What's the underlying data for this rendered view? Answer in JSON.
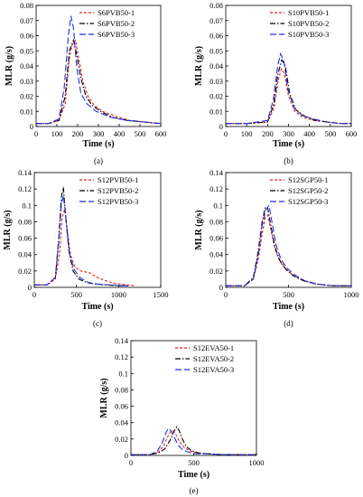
{
  "figure": {
    "panel_labels": [
      "(a)",
      "(b)",
      "(c)",
      "(d)",
      "(e)"
    ]
  },
  "chart_data": [
    {
      "type": "line",
      "ylabel": "MLR (g/s)",
      "xlabel": "Time (s)",
      "xlim": [
        0,
        600
      ],
      "ylim": [
        0,
        0.08
      ],
      "xticks": [
        0,
        100,
        200,
        300,
        400,
        500,
        600
      ],
      "yticks": [
        0,
        0.01,
        0.02,
        0.03,
        0.04,
        0.05,
        0.06,
        0.07,
        0.08
      ],
      "legend": "top-right",
      "grid": false,
      "series": [
        {
          "name": "S6PVB50-1",
          "color": "#e8231f",
          "dash": "3,2",
          "x": [
            0,
            60,
            110,
            140,
            160,
            175,
            190,
            205,
            225,
            250,
            280,
            320,
            380,
            450,
            520,
            580,
            600
          ],
          "y": [
            0.002,
            0.002,
            0.004,
            0.015,
            0.045,
            0.055,
            0.057,
            0.045,
            0.03,
            0.02,
            0.014,
            0.01,
            0.007,
            0.004,
            0.003,
            0.002,
            0.002
          ]
        },
        {
          "name": "S6PVB50-2",
          "color": "#000000",
          "dash": "6,2,1.5,2",
          "x": [
            0,
            60,
            110,
            140,
            160,
            180,
            195,
            215,
            240,
            270,
            310,
            370,
            440,
            520,
            600
          ],
          "y": [
            0.002,
            0.002,
            0.004,
            0.02,
            0.05,
            0.057,
            0.048,
            0.032,
            0.02,
            0.014,
            0.01,
            0.006,
            0.004,
            0.003,
            0.002
          ]
        },
        {
          "name": "S6PVB50-3",
          "color": "#1f2fe0",
          "dash": "7,3",
          "x": [
            0,
            60,
            110,
            135,
            155,
            168,
            180,
            195,
            215,
            245,
            290,
            360,
            440,
            520,
            600
          ],
          "y": [
            0.002,
            0.002,
            0.005,
            0.025,
            0.06,
            0.073,
            0.065,
            0.04,
            0.022,
            0.015,
            0.01,
            0.006,
            0.004,
            0.003,
            0.002
          ]
        }
      ]
    },
    {
      "type": "line",
      "ylabel": "MLR (g/s)",
      "xlabel": "Time (s)",
      "xlim": [
        0,
        600
      ],
      "ylim": [
        0,
        0.08
      ],
      "xticks": [
        0,
        100,
        200,
        300,
        400,
        500,
        600
      ],
      "yticks": [
        0,
        0.01,
        0.02,
        0.03,
        0.04,
        0.05,
        0.06,
        0.07,
        0.08
      ],
      "legend": "top-right",
      "grid": false,
      "series": [
        {
          "name": "S10PVB50-1",
          "color": "#e8231f",
          "dash": "3,2",
          "x": [
            0,
            100,
            200,
            230,
            250,
            265,
            280,
            300,
            330,
            370,
            420,
            480,
            540,
            600
          ],
          "y": [
            0.002,
            0.002,
            0.003,
            0.012,
            0.03,
            0.038,
            0.035,
            0.02,
            0.01,
            0.006,
            0.004,
            0.003,
            0.002,
            0.002
          ]
        },
        {
          "name": "S10PVB50-2",
          "color": "#000000",
          "dash": "6,2,1.5,2",
          "x": [
            0,
            100,
            200,
            230,
            250,
            268,
            285,
            305,
            335,
            375,
            430,
            490,
            550,
            600
          ],
          "y": [
            0.002,
            0.002,
            0.003,
            0.015,
            0.035,
            0.044,
            0.04,
            0.022,
            0.011,
            0.007,
            0.004,
            0.003,
            0.002,
            0.002
          ]
        },
        {
          "name": "S10PVB50-3",
          "color": "#1f2fe0",
          "dash": "7,3",
          "x": [
            0,
            100,
            200,
            228,
            248,
            262,
            278,
            298,
            328,
            368,
            420,
            480,
            545,
            600
          ],
          "y": [
            0.002,
            0.002,
            0.004,
            0.018,
            0.04,
            0.048,
            0.043,
            0.024,
            0.012,
            0.007,
            0.005,
            0.003,
            0.002,
            0.002
          ]
        }
      ]
    },
    {
      "type": "line",
      "ylabel": "MLR (g/s)",
      "xlabel": "Time (s)",
      "xlim": [
        0,
        1500
      ],
      "ylim": [
        0,
        0.14
      ],
      "xticks": [
        0,
        500,
        1000,
        1500
      ],
      "yticks": [
        0,
        0.02,
        0.04,
        0.06,
        0.08,
        0.1,
        0.12,
        0.14
      ],
      "legend": "top-right",
      "grid": false,
      "series": [
        {
          "name": "S12PVB50-1",
          "color": "#e8231f",
          "dash": "3,2",
          "x": [
            0,
            150,
            250,
            300,
            330,
            360,
            390,
            430,
            480,
            550,
            650,
            750,
            850,
            950,
            1100,
            1200
          ],
          "y": [
            0.003,
            0.003,
            0.01,
            0.04,
            0.085,
            0.095,
            0.07,
            0.04,
            0.025,
            0.02,
            0.018,
            0.012,
            0.008,
            0.005,
            0.003,
            0.002
          ]
        },
        {
          "name": "S12PVB50-2",
          "color": "#000000",
          "dash": "6,2,1.5,2",
          "x": [
            0,
            150,
            250,
            290,
            320,
            345,
            370,
            410,
            460,
            530,
            620,
            720,
            850,
            1000,
            1100
          ],
          "y": [
            0.003,
            0.003,
            0.012,
            0.06,
            0.11,
            0.122,
            0.09,
            0.045,
            0.02,
            0.01,
            0.006,
            0.004,
            0.003,
            0.002,
            0.002
          ]
        },
        {
          "name": "S12PVB50-3",
          "color": "#1f2fe0",
          "dash": "7,3",
          "x": [
            0,
            150,
            250,
            290,
            320,
            345,
            375,
            415,
            470,
            540,
            640,
            750,
            900,
            1050,
            1150
          ],
          "y": [
            0.003,
            0.003,
            0.012,
            0.055,
            0.1,
            0.112,
            0.085,
            0.042,
            0.022,
            0.012,
            0.006,
            0.004,
            0.003,
            0.002,
            0.002
          ]
        }
      ]
    },
    {
      "type": "line",
      "ylabel": "MLR (g/s)",
      "xlabel": "Time (s)",
      "xlim": [
        0,
        1000
      ],
      "ylim": [
        0,
        0.14
      ],
      "xticks": [
        0,
        500,
        1000
      ],
      "yticks": [
        0,
        0.02,
        0.04,
        0.06,
        0.08,
        0.1,
        0.12,
        0.14
      ],
      "legend": "top-right",
      "grid": false,
      "series": [
        {
          "name": "S12SGP50-1",
          "color": "#e8231f",
          "dash": "3,2",
          "x": [
            0,
            150,
            220,
            260,
            290,
            315,
            335,
            360,
            390,
            430,
            480,
            540,
            620,
            720,
            850,
            1000
          ],
          "y": [
            0.002,
            0.002,
            0.01,
            0.035,
            0.065,
            0.085,
            0.088,
            0.07,
            0.048,
            0.032,
            0.022,
            0.014,
            0.008,
            0.004,
            0.002,
            0.002
          ]
        },
        {
          "name": "S12SGP50-2",
          "color": "#000000",
          "dash": "6,2,1.5,2",
          "x": [
            0,
            150,
            220,
            260,
            290,
            315,
            335,
            360,
            390,
            430,
            480,
            540,
            620,
            720,
            850,
            1000
          ],
          "y": [
            0.002,
            0.002,
            0.012,
            0.045,
            0.08,
            0.098,
            0.096,
            0.075,
            0.05,
            0.033,
            0.022,
            0.014,
            0.008,
            0.004,
            0.002,
            0.002
          ]
        },
        {
          "name": "S12SGP50-3",
          "color": "#1f2fe0",
          "dash": "7,3",
          "x": [
            0,
            150,
            220,
            260,
            290,
            320,
            345,
            370,
            400,
            440,
            490,
            550,
            630,
            730,
            860,
            1000
          ],
          "y": [
            0.002,
            0.002,
            0.01,
            0.04,
            0.075,
            0.095,
            0.1,
            0.078,
            0.052,
            0.034,
            0.023,
            0.015,
            0.008,
            0.004,
            0.002,
            0.002
          ]
        }
      ]
    },
    {
      "type": "line",
      "ylabel": "MLR (g/s)",
      "xlabel": "Time (s)",
      "xlim": [
        0,
        1000
      ],
      "ylim": [
        0,
        0.14
      ],
      "xticks": [
        0,
        500,
        1000
      ],
      "yticks": [
        0,
        0.02,
        0.04,
        0.06,
        0.08,
        0.1,
        0.12,
        0.14
      ],
      "legend": "top-right",
      "grid": false,
      "series": [
        {
          "name": "S12EVA50-1",
          "color": "#e8231f",
          "dash": "3,2",
          "x": [
            0,
            150,
            220,
            260,
            290,
            315,
            335,
            360,
            390,
            430,
            480,
            540,
            620,
            720,
            850,
            1000
          ],
          "y": [
            0.001,
            0.001,
            0.004,
            0.012,
            0.022,
            0.029,
            0.03,
            0.025,
            0.016,
            0.009,
            0.005,
            0.003,
            0.002,
            0.001,
            0.001,
            0.001
          ]
        },
        {
          "name": "S12EVA50-2",
          "color": "#000000",
          "dash": "6,2,1.5,2",
          "x": [
            0,
            150,
            220,
            270,
            310,
            345,
            365,
            385,
            410,
            440,
            480,
            540,
            620,
            720,
            850,
            1000
          ],
          "y": [
            0.001,
            0.001,
            0.003,
            0.008,
            0.018,
            0.03,
            0.035,
            0.03,
            0.02,
            0.011,
            0.006,
            0.003,
            0.002,
            0.001,
            0.001,
            0.001
          ]
        },
        {
          "name": "S12EVA50-3",
          "color": "#1f2fe0",
          "dash": "7,3",
          "x": [
            0,
            150,
            210,
            250,
            280,
            300,
            320,
            345,
            375,
            410,
            460,
            520,
            600,
            720,
            850,
            1000
          ],
          "y": [
            0.001,
            0.001,
            0.005,
            0.016,
            0.028,
            0.033,
            0.03,
            0.022,
            0.013,
            0.007,
            0.004,
            0.002,
            0.002,
            0.001,
            0.001,
            0.001
          ]
        }
      ]
    }
  ]
}
